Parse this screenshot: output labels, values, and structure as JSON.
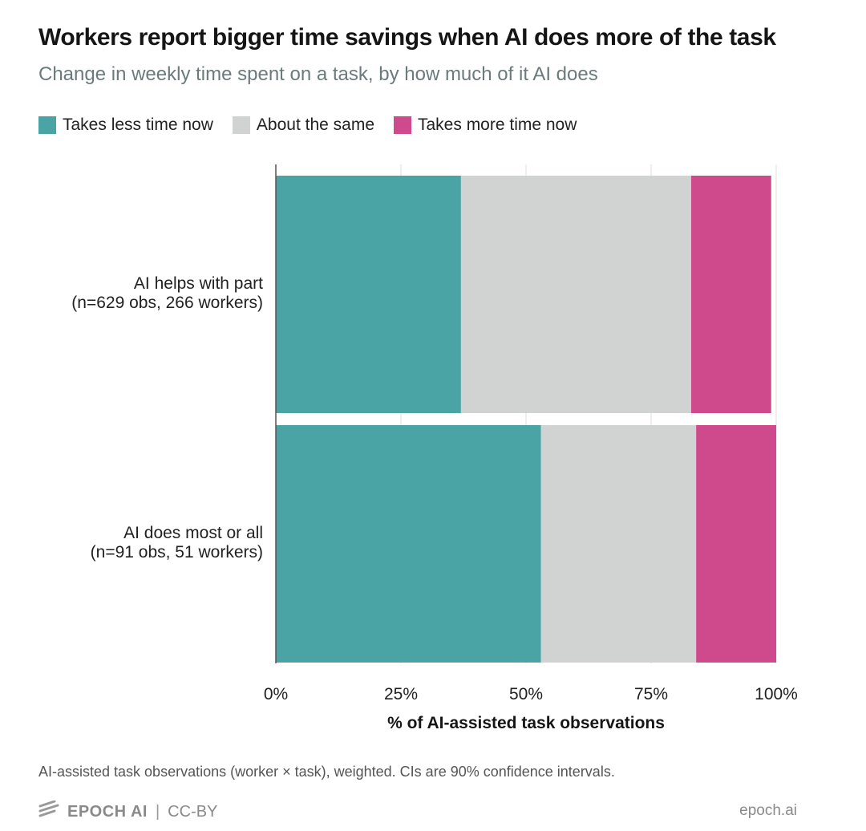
{
  "chart_data": {
    "type": "bar",
    "orientation": "horizontal",
    "stacked": true,
    "title": "Workers report bigger time savings when AI does more of the task",
    "subtitle": "Change in weekly time spent on a task, by how much of it AI does",
    "categories": [
      [
        "AI helps with part",
        "(n=629 obs, 266 workers)"
      ],
      [
        "AI does most or all",
        "(n=91 obs, 51 workers)"
      ]
    ],
    "series": [
      {
        "name": "Takes less time now",
        "color": "#4aa3a5",
        "values": [
          37,
          53
        ]
      },
      {
        "name": "About the same",
        "color": "#d1d3d2",
        "values": [
          46,
          31
        ]
      },
      {
        "name": "Takes more time now",
        "color": "#cf4a8c",
        "values": [
          16,
          16
        ]
      }
    ],
    "xlabel": "% of AI-assisted task observations",
    "ylabel": "",
    "xlim": [
      0,
      100
    ],
    "x_ticks": [
      "0%",
      "25%",
      "50%",
      "75%",
      "100%"
    ],
    "grid": true,
    "legend_position": "top-left"
  },
  "footnote": "AI-assisted task observations (worker × task), weighted. CIs are 90% confidence intervals.",
  "footer": {
    "brand": "EPOCH AI",
    "separator": "|",
    "license": "CC-BY",
    "site": "epoch.ai"
  },
  "icons": {
    "brand_logo": "epoch-logo-icon"
  }
}
